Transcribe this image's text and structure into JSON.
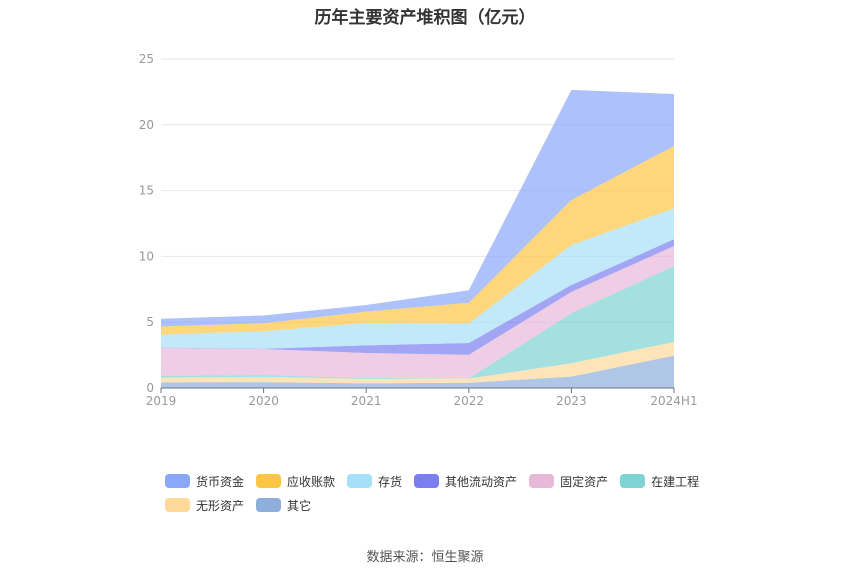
{
  "chart_data": {
    "type": "area",
    "stacked": true,
    "title": "历年主要资产堆积图（亿元）",
    "source": "数据来源：恒生聚源",
    "categories": [
      "2019",
      "2020",
      "2021",
      "2022",
      "2023",
      "2024H1"
    ],
    "ylim": [
      0,
      25
    ],
    "yticks": [
      0,
      5,
      10,
      15,
      20,
      25
    ],
    "grid": true,
    "legend_position": "bottom",
    "series": [
      {
        "name": "其它",
        "color": "#8eaedc",
        "values": [
          0.44,
          0.45,
          0.35,
          0.4,
          0.86,
          2.46
        ]
      },
      {
        "name": "无形资产",
        "color": "#fed99a",
        "values": [
          0.35,
          0.4,
          0.34,
          0.31,
          1.02,
          1.04
        ]
      },
      {
        "name": "在建工程",
        "color": "#7ed3d3",
        "values": [
          0.13,
          0.13,
          0.07,
          0.02,
          3.8,
          5.77
        ]
      },
      {
        "name": "固定资产",
        "color": "#e8b8d8",
        "values": [
          2.12,
          1.98,
          1.9,
          1.8,
          1.62,
          1.52
        ]
      },
      {
        "name": "其他流动资产",
        "color": "#7b7ef0",
        "values": [
          0.03,
          0.02,
          0.58,
          0.89,
          0.53,
          0.51
        ]
      },
      {
        "name": "存货",
        "color": "#a6e0f8",
        "values": [
          0.99,
          1.33,
          1.71,
          1.48,
          3.04,
          2.35
        ]
      },
      {
        "name": "应收账款",
        "color": "#fdc544",
        "values": [
          0.61,
          0.61,
          0.85,
          1.58,
          3.42,
          4.74
        ]
      },
      {
        "name": "货币资金",
        "color": "#8aa8f8",
        "values": [
          0.59,
          0.59,
          0.51,
          0.95,
          8.36,
          3.95
        ]
      }
    ],
    "legend_order": [
      "货币资金",
      "应收账款",
      "存货",
      "其他流动资产",
      "固定资产",
      "在建工程",
      "无形资产",
      "其它"
    ]
  }
}
